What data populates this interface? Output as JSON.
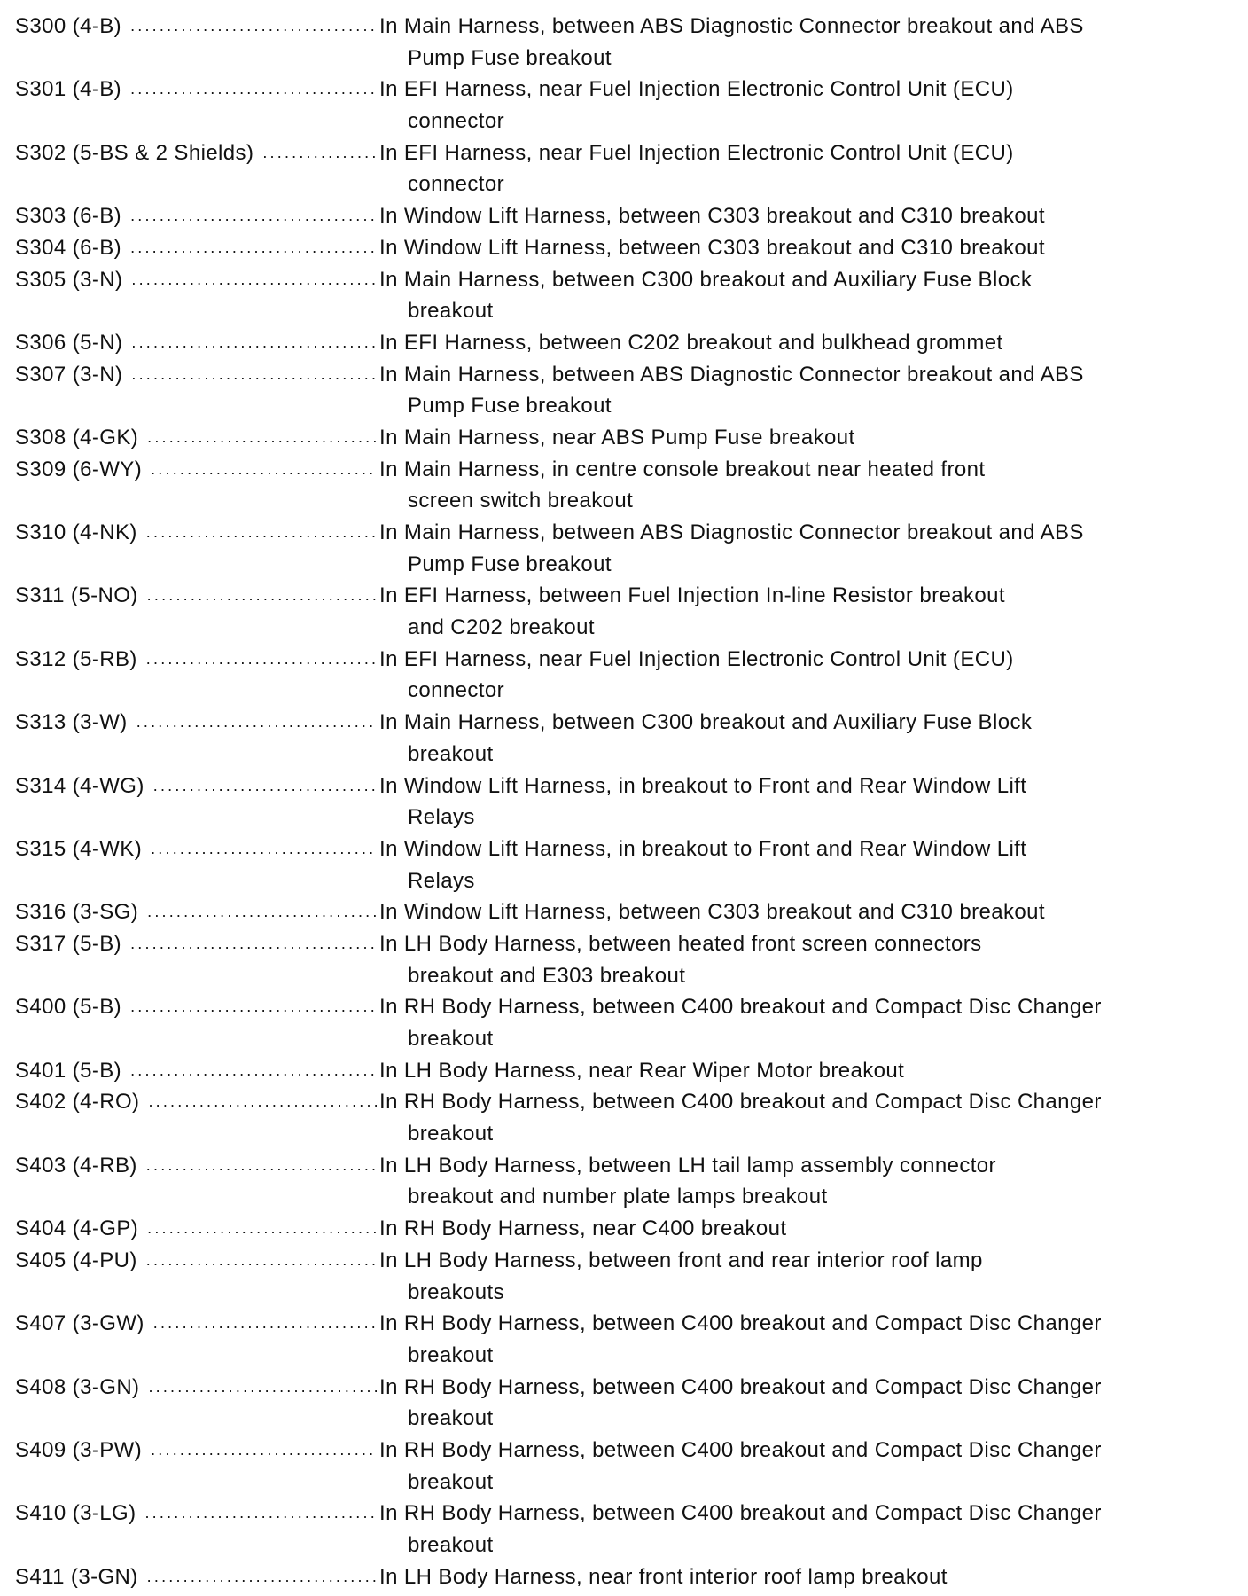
{
  "entries": [
    {
      "code": "S300 (4-B)",
      "lines": [
        "In Main Harness, between ABS Diagnostic Connector breakout and ABS",
        "Pump Fuse breakout"
      ]
    },
    {
      "code": "S301 (4-B)",
      "lines": [
        "In EFI Harness, near Fuel Injection Electronic Control Unit (ECU)",
        "connector"
      ]
    },
    {
      "code": "S302 (5-BS & 2 Shields)",
      "lines": [
        "In EFI Harness, near Fuel Injection Electronic Control Unit (ECU)",
        "connector"
      ]
    },
    {
      "code": "S303 (6-B)",
      "lines": [
        "In Window Lift Harness, between C303 breakout and C310 breakout"
      ]
    },
    {
      "code": "S304 (6-B)",
      "lines": [
        "In Window Lift Harness, between C303 breakout and C310 breakout"
      ]
    },
    {
      "code": "S305 (3-N)",
      "lines": [
        "In Main Harness, between C300 breakout and Auxiliary Fuse Block",
        "breakout"
      ]
    },
    {
      "code": "S306 (5-N)",
      "lines": [
        "In EFI Harness, between C202 breakout and bulkhead grommet"
      ]
    },
    {
      "code": "S307 (3-N)",
      "lines": [
        "In Main Harness, between ABS Diagnostic Connector breakout and ABS",
        "Pump Fuse breakout"
      ]
    },
    {
      "code": "S308 (4-GK)",
      "lines": [
        "In Main Harness, near ABS Pump Fuse breakout"
      ]
    },
    {
      "code": "S309 (6-WY)",
      "lines": [
        "In Main Harness, in centre console breakout near heated front",
        "screen switch breakout"
      ]
    },
    {
      "code": "S310 (4-NK)",
      "lines": [
        "In Main Harness, between ABS Diagnostic Connector breakout and ABS",
        "Pump Fuse breakout"
      ]
    },
    {
      "code": "S311 (5-NO)",
      "lines": [
        "In EFI Harness, between Fuel Injection In-line Resistor breakout",
        "and C202 breakout"
      ]
    },
    {
      "code": "S312 (5-RB)",
      "lines": [
        "In EFI Harness, near Fuel Injection Electronic Control Unit (ECU)",
        "connector"
      ]
    },
    {
      "code": "S313 (3-W)",
      "lines": [
        "In Main Harness, between C300 breakout and Auxiliary Fuse Block",
        "breakout"
      ]
    },
    {
      "code": "S314 (4-WG)",
      "lines": [
        "In Window Lift Harness, in breakout to Front and Rear Window Lift",
        "Relays"
      ]
    },
    {
      "code": "S315 (4-WK)",
      "lines": [
        "In Window Lift Harness, in breakout to Front and Rear Window Lift",
        "Relays"
      ]
    },
    {
      "code": "S316 (3-SG)",
      "lines": [
        "In Window Lift Harness, between C303 breakout and C310 breakout"
      ]
    },
    {
      "code": "S317 (5-B)",
      "lines": [
        "In LH Body Harness, between heated front screen connectors",
        "breakout and E303 breakout"
      ]
    },
    {
      "code": "S400 (5-B)",
      "lines": [
        "In RH Body Harness, between C400 breakout and Compact Disc Changer",
        "breakout"
      ]
    },
    {
      "code": "S401 (5-B)",
      "lines": [
        "In LH Body Harness, near Rear Wiper Motor breakout"
      ]
    },
    {
      "code": "S402 (4-RO)",
      "lines": [
        "In RH Body Harness, between C400 breakout and Compact Disc Changer",
        "breakout"
      ]
    },
    {
      "code": "S403 (4-RB)",
      "lines": [
        "In LH Body Harness, between LH tail lamp assembly connector",
        "breakout and number plate lamps breakout"
      ]
    },
    {
      "code": "S404 (4-GP)",
      "lines": [
        "In RH Body Harness, near C400 breakout"
      ]
    },
    {
      "code": "S405 (4-PU)",
      "lines": [
        "In LH Body Harness, between front and rear interior roof lamp",
        "breakouts"
      ]
    },
    {
      "code": "S407 (3-GW)",
      "lines": [
        "In RH Body Harness, between C400 breakout and Compact Disc Changer",
        "breakout"
      ]
    },
    {
      "code": "S408 (3-GN)",
      "lines": [
        "In RH Body Harness, between C400 breakout and Compact Disc Changer",
        "breakout"
      ]
    },
    {
      "code": "S409 (3-PW)",
      "lines": [
        "In RH Body Harness, between C400 breakout and Compact Disc Changer",
        "breakout"
      ]
    },
    {
      "code": "S410 (3-LG)",
      "lines": [
        "In RH Body Harness, between C400 breakout and Compact Disc Changer",
        "breakout"
      ]
    },
    {
      "code": "S411 (3-GN)",
      "lines": [
        "In LH Body Harness, near front interior roof lamp breakout"
      ]
    }
  ]
}
